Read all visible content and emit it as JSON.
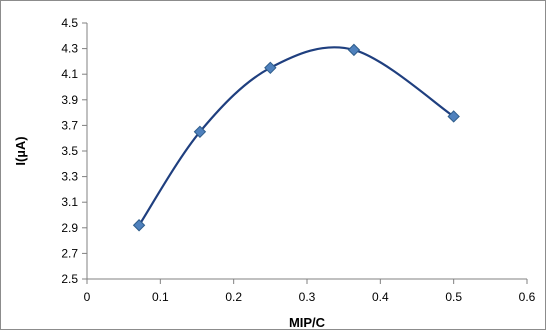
{
  "chart_data": {
    "type": "scatter",
    "title": "",
    "xlabel": "MIP/C",
    "ylabel": "I(µA)",
    "xlim": [
      0,
      0.6
    ],
    "ylim": [
      2.5,
      4.5
    ],
    "x_ticks": [
      "0",
      "0.1",
      "0.2",
      "0.3",
      "0.4",
      "0.5",
      "0.6"
    ],
    "y_ticks": [
      "2.5",
      "2.7",
      "2.9",
      "3.1",
      "3.3",
      "3.5",
      "3.7",
      "3.9",
      "4.1",
      "4.3",
      "4.5"
    ],
    "grid": false,
    "legend": "none",
    "series": [
      {
        "x": [
          0.071,
          0.154,
          0.25,
          0.364,
          0.5
        ],
        "y": [
          2.92,
          3.65,
          4.15,
          4.29,
          3.77
        ],
        "color": "#4F81BD",
        "line_color": "#1F3F7F",
        "marker": "diamond",
        "smooth": true
      }
    ]
  }
}
